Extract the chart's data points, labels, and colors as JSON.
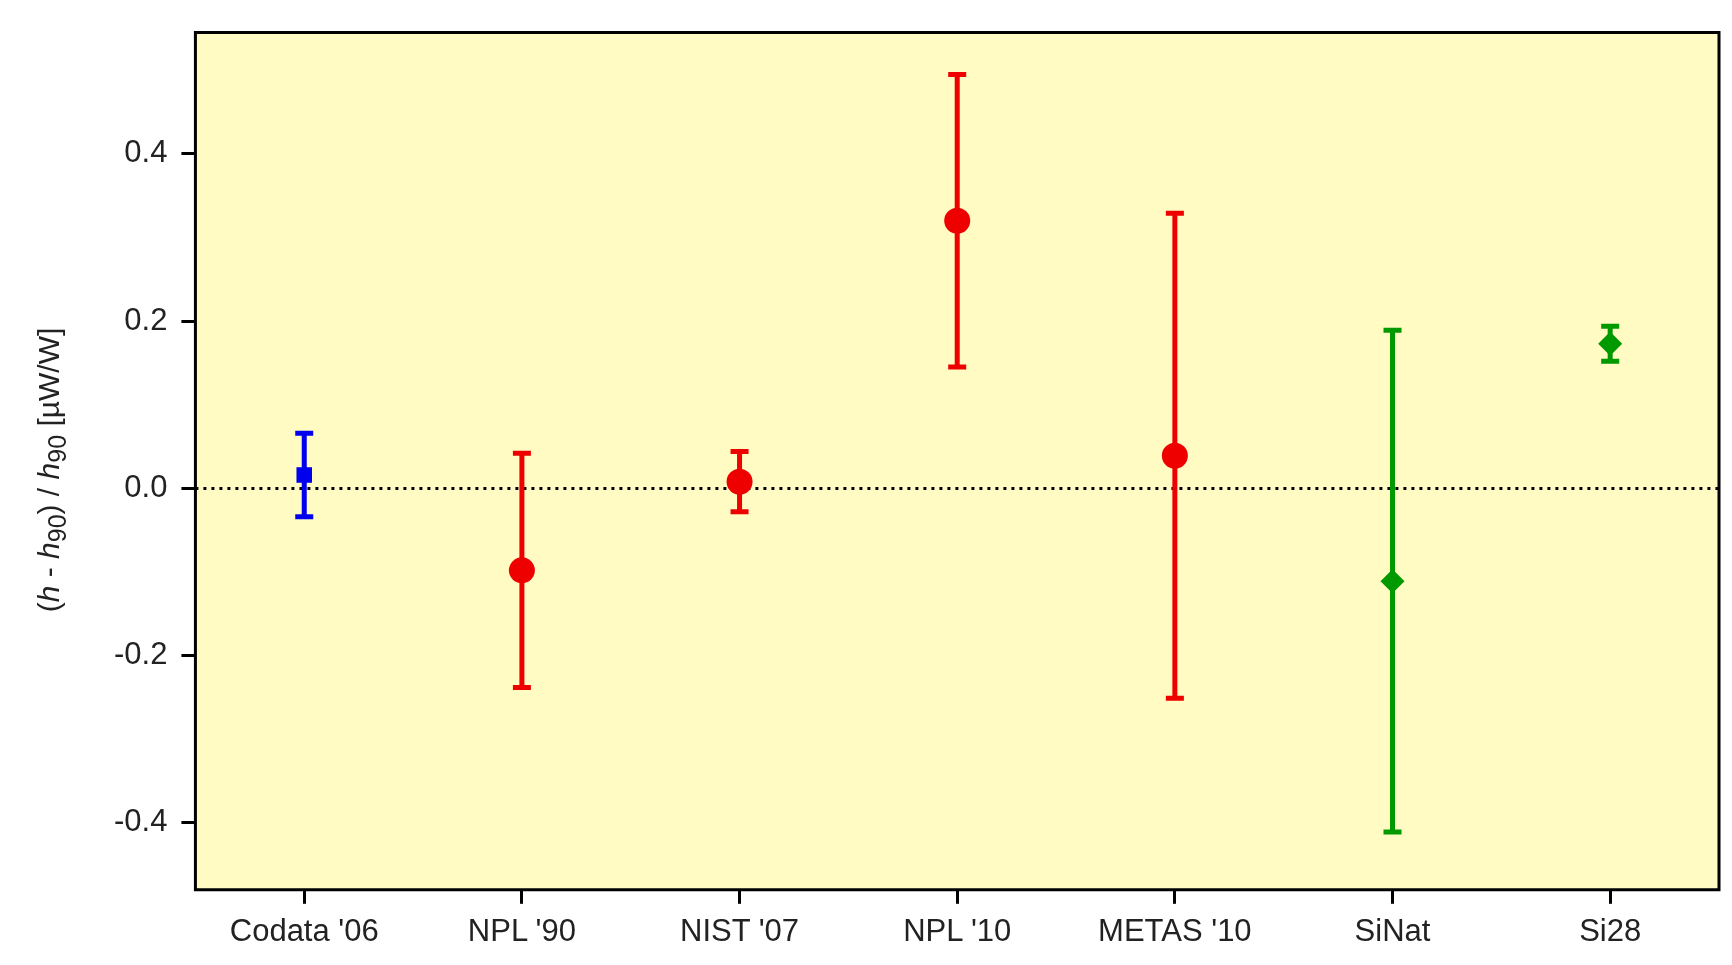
{
  "chart_data": {
    "type": "scatter",
    "ylabel": "(h - h$_{90}$) / h$_{90}$  [µW/W]",
    "categories": [
      "Codata '06",
      "NPL '90",
      "NIST '07",
      "NPL '10",
      "METAS '10",
      "SiNat",
      "Si28"
    ],
    "series": [
      {
        "color": "#0000ee",
        "marker": "square",
        "values": [
          0.016,
          null,
          null,
          null,
          null,
          null,
          null
        ],
        "errors": [
          0.05,
          null,
          null,
          null,
          null,
          null,
          null
        ]
      },
      {
        "color": "#ee0000",
        "marker": "circle",
        "values": [
          null,
          -0.098,
          0.008,
          0.32,
          0.039,
          null,
          null
        ],
        "errors": [
          null,
          0.14,
          0.036,
          0.175,
          0.29,
          null,
          null
        ]
      },
      {
        "color": "#009900",
        "marker": "diamond",
        "values": [
          null,
          null,
          null,
          null,
          null,
          -0.111,
          0.173
        ],
        "errors": [
          null,
          null,
          null,
          null,
          null,
          0.3,
          0.021
        ]
      }
    ],
    "ylim": [
      -0.48,
      0.545
    ],
    "yticks": [
      {
        "value": -0.4,
        "label": "-0.4"
      },
      {
        "value": -0.2,
        "label": "-0.2"
      },
      {
        "value": 0,
        "label": "0.0"
      },
      0.2,
      0.4
    ],
    "ref_lines": [
      {
        "axis": "y",
        "value": 0,
        "color": "#000000",
        "line_style": "dotted"
      }
    ],
    "grid": false,
    "legend": false
  }
}
